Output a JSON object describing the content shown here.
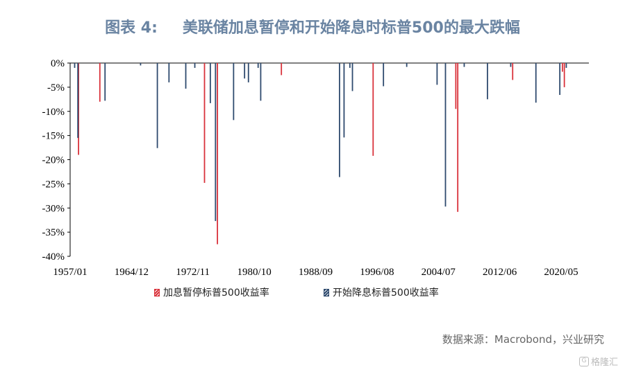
{
  "title": {
    "number": "图表 4:",
    "text": "美联储加息暂停和开始降息时标普500的最大跌幅"
  },
  "source": "数据来源：Macrobond，兴业研究",
  "watermark": "格隆汇",
  "legend": {
    "hike_pause": "加息暂停标普500收益率",
    "cut_start": "开始降息标普500收益率"
  },
  "colors": {
    "hike_pause": "#d9323b",
    "cut_start": "#2e4a6e",
    "title": "#6a84a2"
  },
  "chart_data": {
    "type": "bar",
    "xlim": [
      "1957-01",
      "2023-12"
    ],
    "ylim": [
      -40,
      0
    ],
    "yticks": [
      0,
      -5,
      -10,
      -15,
      -20,
      -25,
      -30,
      -35,
      -40
    ],
    "ytick_labels": [
      "0%",
      "-5%",
      "-10%",
      "-15%",
      "-20%",
      "-25%",
      "-30%",
      "-35%",
      "-40%"
    ],
    "xtick_labels": [
      "1957/01",
      "1964/12",
      "1972/11",
      "1980/10",
      "1988/09",
      "1996/08",
      "2004/07",
      "2012/06",
      "2020/05"
    ],
    "xticks": [
      "1957-01",
      "1964-12",
      "1972-11",
      "1980-10",
      "1988-09",
      "1996-08",
      "2004-07",
      "2012-06",
      "2020-05"
    ],
    "grid": false,
    "legend_position": "bottom",
    "series": [
      {
        "name": "加息暂停标普500收益率",
        "key": "hike_pause",
        "points": [
          [
            "1958-02",
            -19.0
          ],
          [
            "1960-11",
            -8.0
          ],
          [
            "1974-05",
            -24.8
          ],
          [
            "1976-01",
            -37.5
          ],
          [
            "1984-04",
            -2.5
          ],
          [
            "1996-02",
            -19.2
          ],
          [
            "2006-10",
            -9.5
          ],
          [
            "2007-01",
            -30.8
          ],
          [
            "2014-02",
            -3.5
          ],
          [
            "2020-07",
            -1.8
          ],
          [
            "2020-10",
            -5.0
          ]
        ]
      },
      {
        "name": "开始降息标普500收益率",
        "key": "cut_start",
        "points": [
          [
            "1957-08",
            -1.0
          ],
          [
            "1958-01",
            -15.5
          ],
          [
            "1961-07",
            -7.8
          ],
          [
            "1966-02",
            -0.5
          ],
          [
            "1968-04",
            -17.6
          ],
          [
            "1969-10",
            -4.0
          ],
          [
            "1971-12",
            -5.3
          ],
          [
            "1973-02",
            -1.0
          ],
          [
            "1975-02",
            -8.3
          ],
          [
            "1975-10",
            -32.7
          ],
          [
            "1978-02",
            -11.8
          ],
          [
            "1979-07",
            -3.2
          ],
          [
            "1980-01",
            -4.0
          ],
          [
            "1981-04",
            -1.0
          ],
          [
            "1981-08",
            -7.8
          ],
          [
            "1991-10",
            -23.6
          ],
          [
            "1992-05",
            -15.4
          ],
          [
            "1993-02",
            -1.0
          ],
          [
            "1993-06",
            -5.8
          ],
          [
            "1997-06",
            -4.8
          ],
          [
            "2000-06",
            -0.8
          ],
          [
            "2004-05",
            -4.5
          ],
          [
            "2005-06",
            -29.7
          ],
          [
            "2007-11",
            -0.8
          ],
          [
            "2010-11",
            -7.5
          ],
          [
            "2013-11",
            -0.8
          ],
          [
            "2017-02",
            -8.2
          ],
          [
            "2020-03",
            -6.6
          ],
          [
            "2021-01",
            -1.0
          ]
        ]
      }
    ]
  }
}
